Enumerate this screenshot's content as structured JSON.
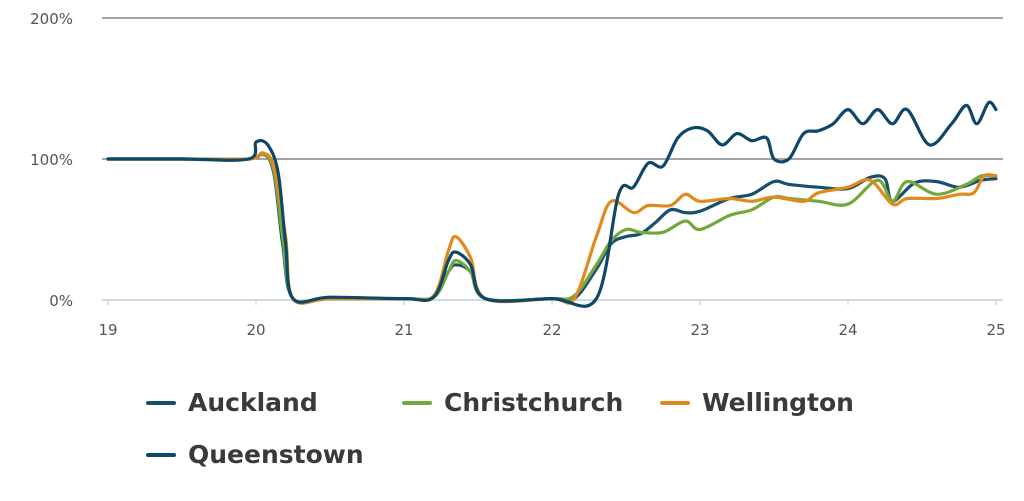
{
  "chart_data": {
    "type": "line",
    "title": "",
    "xlabel": "",
    "ylabel": "",
    "x_ticks": [
      "19",
      "20",
      "21",
      "22",
      "23",
      "24",
      "25"
    ],
    "y_ticks": [
      "0%",
      "100%",
      "200%"
    ],
    "xlim": [
      19,
      25
    ],
    "ylim": [
      0,
      200
    ],
    "grid": true,
    "legend_position": "bottom",
    "series": [
      {
        "name": "Auckland",
        "color": "#174f6e",
        "points": [
          [
            19,
            100
          ],
          [
            19.5,
            100
          ],
          [
            19.95,
            100
          ],
          [
            20.05,
            104
          ],
          [
            20.12,
            90
          ],
          [
            20.18,
            40
          ],
          [
            20.25,
            1
          ],
          [
            20.5,
            1
          ],
          [
            21.0,
            1
          ],
          [
            21.2,
            2
          ],
          [
            21.3,
            20
          ],
          [
            21.35,
            25
          ],
          [
            21.45,
            20
          ],
          [
            21.55,
            1
          ],
          [
            22.0,
            1
          ],
          [
            22.15,
            1
          ],
          [
            22.3,
            22
          ],
          [
            22.4,
            40
          ],
          [
            22.5,
            45
          ],
          [
            22.6,
            47
          ],
          [
            22.7,
            55
          ],
          [
            22.8,
            64
          ],
          [
            22.9,
            62
          ],
          [
            23.0,
            63
          ],
          [
            23.2,
            72
          ],
          [
            23.35,
            75
          ],
          [
            23.5,
            84
          ],
          [
            23.6,
            82
          ],
          [
            23.8,
            80
          ],
          [
            24.0,
            79
          ],
          [
            24.15,
            87
          ],
          [
            24.25,
            86
          ],
          [
            24.3,
            70
          ],
          [
            24.45,
            83
          ],
          [
            24.6,
            84
          ],
          [
            24.75,
            80
          ],
          [
            24.9,
            85
          ],
          [
            25.0,
            86
          ]
        ]
      },
      {
        "name": "Christchurch",
        "color": "#73a93a",
        "points": [
          [
            19,
            100
          ],
          [
            19.5,
            100
          ],
          [
            19.95,
            100
          ],
          [
            20.05,
            103
          ],
          [
            20.12,
            92
          ],
          [
            20.18,
            45
          ],
          [
            20.25,
            1
          ],
          [
            20.5,
            1
          ],
          [
            21.0,
            1
          ],
          [
            21.2,
            2
          ],
          [
            21.3,
            20
          ],
          [
            21.35,
            28
          ],
          [
            21.45,
            20
          ],
          [
            21.55,
            1
          ],
          [
            22.0,
            1
          ],
          [
            22.15,
            3
          ],
          [
            22.3,
            25
          ],
          [
            22.4,
            42
          ],
          [
            22.5,
            50
          ],
          [
            22.6,
            48
          ],
          [
            22.75,
            48
          ],
          [
            22.9,
            56
          ],
          [
            23.0,
            50
          ],
          [
            23.2,
            60
          ],
          [
            23.35,
            64
          ],
          [
            23.5,
            73
          ],
          [
            23.6,
            72
          ],
          [
            23.8,
            70
          ],
          [
            24.0,
            68
          ],
          [
            24.2,
            85
          ],
          [
            24.3,
            70
          ],
          [
            24.4,
            84
          ],
          [
            24.6,
            75
          ],
          [
            24.8,
            82
          ],
          [
            24.9,
            88
          ],
          [
            25.0,
            88
          ]
        ]
      },
      {
        "name": "Wellington",
        "color": "#e08a1e",
        "points": [
          [
            19,
            100
          ],
          [
            19.5,
            100
          ],
          [
            19.95,
            100
          ],
          [
            20.05,
            104
          ],
          [
            20.12,
            94
          ],
          [
            20.2,
            45
          ],
          [
            20.25,
            1
          ],
          [
            20.5,
            1
          ],
          [
            21.0,
            1
          ],
          [
            21.2,
            3
          ],
          [
            21.3,
            35
          ],
          [
            21.35,
            45
          ],
          [
            21.45,
            30
          ],
          [
            21.55,
            1
          ],
          [
            22.0,
            1
          ],
          [
            22.15,
            1
          ],
          [
            22.3,
            45
          ],
          [
            22.4,
            70
          ],
          [
            22.55,
            62
          ],
          [
            22.65,
            67
          ],
          [
            22.8,
            67
          ],
          [
            22.9,
            75
          ],
          [
            23.0,
            70
          ],
          [
            23.2,
            72
          ],
          [
            23.35,
            70
          ],
          [
            23.5,
            73
          ],
          [
            23.7,
            70
          ],
          [
            23.8,
            76
          ],
          [
            24.0,
            80
          ],
          [
            24.15,
            85
          ],
          [
            24.3,
            68
          ],
          [
            24.4,
            72
          ],
          [
            24.6,
            72
          ],
          [
            24.75,
            75
          ],
          [
            24.85,
            76
          ],
          [
            24.92,
            88
          ],
          [
            25.0,
            88
          ]
        ]
      },
      {
        "name": "Queenstown",
        "color": "#0e4767",
        "points": [
          [
            19,
            100
          ],
          [
            19.5,
            100
          ],
          [
            19.95,
            100
          ],
          [
            20.0,
            112
          ],
          [
            20.08,
            110
          ],
          [
            20.15,
            90
          ],
          [
            20.2,
            40
          ],
          [
            20.25,
            1
          ],
          [
            20.5,
            2
          ],
          [
            21.0,
            1
          ],
          [
            21.2,
            2
          ],
          [
            21.3,
            28
          ],
          [
            21.35,
            34
          ],
          [
            21.45,
            25
          ],
          [
            21.55,
            1
          ],
          [
            22.0,
            1
          ],
          [
            22.3,
            1
          ],
          [
            22.45,
            75
          ],
          [
            22.55,
            80
          ],
          [
            22.65,
            97
          ],
          [
            22.75,
            95
          ],
          [
            22.85,
            115
          ],
          [
            22.95,
            122
          ],
          [
            23.05,
            120
          ],
          [
            23.15,
            110
          ],
          [
            23.25,
            118
          ],
          [
            23.35,
            113
          ],
          [
            23.45,
            115
          ],
          [
            23.5,
            100
          ],
          [
            23.6,
            100
          ],
          [
            23.7,
            118
          ],
          [
            23.8,
            120
          ],
          [
            23.9,
            125
          ],
          [
            24.0,
            135
          ],
          [
            24.1,
            125
          ],
          [
            24.2,
            135
          ],
          [
            24.3,
            125
          ],
          [
            24.4,
            135
          ],
          [
            24.55,
            110
          ],
          [
            24.7,
            125
          ],
          [
            24.8,
            138
          ],
          [
            24.87,
            125
          ],
          [
            24.95,
            140
          ],
          [
            25.0,
            135
          ]
        ]
      }
    ]
  }
}
